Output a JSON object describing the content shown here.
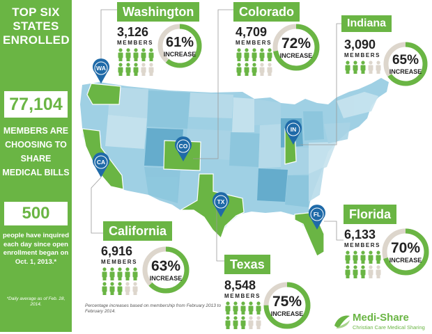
{
  "sidebar": {
    "title": "TOP SIX STATES ENROLLED",
    "members_total": "77,104",
    "members_text": "MEMBERS ARE CHOOSING TO SHARE MEDICAL BILLS",
    "daily_number": "500",
    "daily_text": "people have inquired each day since open enrollment began on Oct. 1, 2013.*",
    "daily_note": "*Daily average as of Feb. 28, 2014."
  },
  "states": [
    {
      "name": "Washington",
      "members": "3,126",
      "members_label": "MEMBERS",
      "percent": "61%",
      "increase_label": "INCREASE",
      "pin": "WA"
    },
    {
      "name": "Colorado",
      "members": "4,709",
      "members_label": "MEMBERS",
      "percent": "72%",
      "increase_label": "INCREASE",
      "pin": "CO"
    },
    {
      "name": "Indiana",
      "members": "3,090",
      "members_label": "MEMBERS",
      "percent": "65%",
      "increase_label": "INCREASE",
      "pin": "IN"
    },
    {
      "name": "California",
      "members": "6,916",
      "members_label": "MEMBERS",
      "percent": "63%",
      "increase_label": "INCREASE",
      "pin": "CA"
    },
    {
      "name": "Texas",
      "members": "8,548",
      "members_label": "MEMBERS",
      "percent": "75%",
      "increase_label": "INCREASE",
      "pin": "TX"
    },
    {
      "name": "Florida",
      "members": "6,133",
      "members_label": "MEMBERS",
      "percent": "70%",
      "increase_label": "INCREASE",
      "pin": "FL"
    }
  ],
  "footnote": "Percentage increases based on membership from February 2013 to February 2014.",
  "logo": {
    "name": "Medi-Share",
    "tagline": "Christian Care Medical Sharing"
  },
  "colors": {
    "green": "#6ab544",
    "ring_gray": "#ddd6cc",
    "pin_blue": "#1f6aa8",
    "map_light": "#b9dcea",
    "map_mid": "#8cc6dd",
    "map_dark": "#5fa9ca"
  }
}
